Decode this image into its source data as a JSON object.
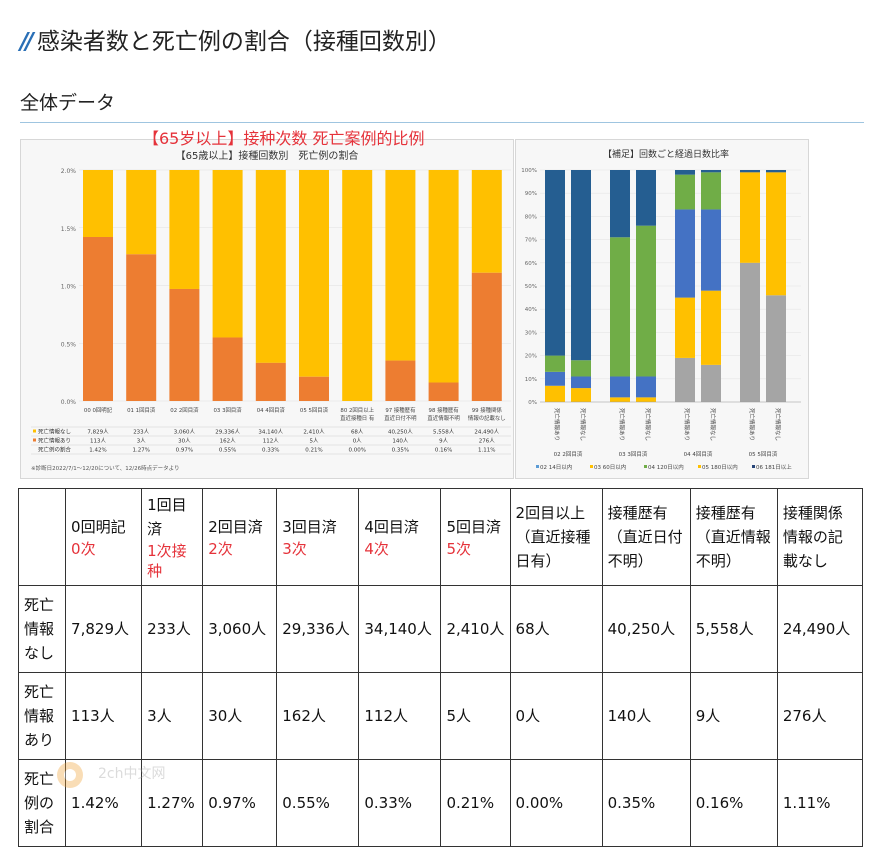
{
  "page": {
    "title": "感染者数と死亡例の割合（接種回数別）",
    "section": "全体データ",
    "annotation": "【65岁以上】接种次数 死亡案例的比例",
    "watermark": "2ch中文网"
  },
  "chart_data": [
    {
      "type": "bar",
      "stacked": true,
      "title": "【65歳以上】接種回数別　死亡例の割合",
      "categories": [
        "00 0回明記",
        "01 1回目済",
        "02 2回目済",
        "03 3回目済",
        "04 4回目済",
        "05 5回目済",
        "80 2回目以上 直近接種日 有",
        "97 接種歴有 直近日付不明",
        "98 接種歴有 直近情報不明",
        "99 接種関係 情報の記載なし"
      ],
      "ylim": [
        0,
        2.0
      ],
      "yticks": [
        "0.0%",
        "0.5%",
        "1.0%",
        "1.5%",
        "2.0%"
      ],
      "series": [
        {
          "name": "死亡情報なし",
          "color": "#FFC000",
          "values": [
            "7,829人",
            "233人",
            "3,060人",
            "29,336人",
            "34,140人",
            "2,410人",
            "68人",
            "40,250人",
            "5,558人",
            "24,490人"
          ]
        },
        {
          "name": "死亡情報あり",
          "color": "#ED7D31",
          "values": [
            "113人",
            "3人",
            "30人",
            "162人",
            "112人",
            "5人",
            "0人",
            "140人",
            "9人",
            "276人"
          ]
        },
        {
          "name": "死亡例の割合",
          "values": [
            1.42,
            1.27,
            0.97,
            0.55,
            0.33,
            0.21,
            0.0,
            0.35,
            0.16,
            1.11
          ],
          "labels": [
            "1.42%",
            "1.27%",
            "0.97%",
            "0.55%",
            "0.33%",
            "0.21%",
            "0.00%",
            "0.35%",
            "0.16%",
            "1.11%"
          ]
        }
      ],
      "footnote": "※診断日2022/7/1～12/20について、12/26時点データより"
    },
    {
      "type": "bar",
      "stacked": true,
      "title": "【補足】回数ごと経過日数比率",
      "yticks": [
        "0%",
        "10%",
        "20%",
        "30%",
        "40%",
        "50%",
        "60%",
        "70%",
        "80%",
        "90%",
        "100%"
      ],
      "bar_labels": [
        "死亡情報あり",
        "死亡情報なし",
        "死亡情報あり",
        "死亡情報なし",
        "死亡情報あり",
        "死亡情報なし",
        "死亡情報あり",
        "死亡情報なし"
      ],
      "groups": [
        "02 2回目済",
        "03 3回目済",
        "04 4回目済",
        "05 5回目済"
      ],
      "legend": [
        {
          "name": "02 14日以内",
          "color": "#5B9BD5"
        },
        {
          "name": "03 60日以内",
          "color": "#FFC000"
        },
        {
          "name": "04 120日以内",
          "color": "#70AD47"
        },
        {
          "name": "05 180日以内",
          "color": "#FFC000"
        },
        {
          "name": "06 181日以上",
          "color": "#264478"
        }
      ],
      "stacks_percent": [
        [
          7,
          6,
          7,
          80
        ],
        [
          6,
          5,
          7,
          82
        ],
        [
          0,
          2,
          9,
          60,
          29
        ],
        [
          0,
          2,
          9,
          65,
          24
        ],
        [
          19,
          26,
          38,
          15,
          2
        ],
        [
          16,
          32,
          35,
          16,
          1
        ],
        [
          60,
          39,
          1
        ],
        [
          46,
          53,
          1
        ]
      ],
      "stack_colors": [
        [
          "#ffc000",
          "#4472c4",
          "#70ad47",
          "#255e91"
        ],
        [
          "#ffc000",
          "#4472c4",
          "#70ad47",
          "#255e91"
        ],
        [
          "#a5a5a5",
          "#ffc000",
          "#4472c4",
          "#70ad47",
          "#255e91"
        ],
        [
          "#a5a5a5",
          "#ffc000",
          "#4472c4",
          "#70ad47",
          "#255e91"
        ],
        [
          "#a5a5a5",
          "#ffc000",
          "#4472c4",
          "#70ad47",
          "#255e91"
        ],
        [
          "#a5a5a5",
          "#ffc000",
          "#4472c4",
          "#70ad47",
          "#255e91"
        ],
        [
          "#a5a5a5",
          "#ffc000",
          "#255e91"
        ],
        [
          "#a5a5a5",
          "#ffc000",
          "#255e91"
        ]
      ]
    }
  ],
  "table": {
    "headers": [
      {
        "text": "",
        "note": ""
      },
      {
        "text": "0回明記",
        "note": "0次"
      },
      {
        "text": "1回目済",
        "note": "1次接种"
      },
      {
        "text": "2回目済",
        "note": "2次"
      },
      {
        "text": "3回目済",
        "note": "3次"
      },
      {
        "text": "4回目済",
        "note": "4次"
      },
      {
        "text": "5回目済",
        "note": "5次"
      },
      {
        "text": "2回目以上（直近接種日有）",
        "note": ""
      },
      {
        "text": "接種歴有（直近日付不明）",
        "note": ""
      },
      {
        "text": "接種歴有（直近情報不明）",
        "note": ""
      },
      {
        "text": "接種関係情報の記載なし",
        "note": ""
      }
    ],
    "rows": [
      {
        "label": "死亡情報なし",
        "cells": [
          "7,829人",
          "233人",
          "3,060人",
          "29,336人",
          "34,140人",
          "2,410人",
          "68人",
          "40,250人",
          "5,558人",
          "24,490人"
        ]
      },
      {
        "label": "死亡情報あり",
        "cells": [
          "113人",
          "3人",
          "30人",
          "162人",
          "112人",
          "5人",
          "0人",
          "140人",
          "9人",
          "276人"
        ]
      },
      {
        "label": "死亡例の割合",
        "cells": [
          "1.42%",
          "1.27%",
          "0.97%",
          "0.55%",
          "0.33%",
          "0.21%",
          "0.00%",
          "0.35%",
          "0.16%",
          "1.11%"
        ]
      }
    ]
  }
}
